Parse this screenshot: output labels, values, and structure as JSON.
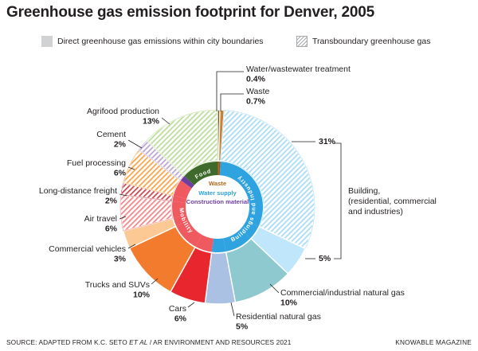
{
  "title": "Greenhouse gas emission footprint for Denver, 2005",
  "legend": {
    "direct": "Direct greenhouse gas emissions within city boundaries",
    "transboundary": "Transboundary greenhouse gas"
  },
  "chart_data": {
    "type": "pie",
    "title": "Greenhouse gas emission footprint for Denver, 2005",
    "unit": "%",
    "slices": [
      {
        "label": "Water/wastewater treatment",
        "value": 0.4,
        "pct_label": "0.4%",
        "group": "Waste",
        "kind": "direct",
        "color": "#8a4f0e"
      },
      {
        "label": "Waste",
        "value": 0.7,
        "pct_label": "0.7%",
        "group": "Waste",
        "kind": "direct",
        "color": "#c38335"
      },
      {
        "label": "Building, electricity (residential, commercial and industries)",
        "value": 31,
        "pct_label": "31%",
        "group": "Buildings and Industry",
        "kind": "transboundary",
        "color": "#a9dcf6"
      },
      {
        "label": "Building, electricity (residential, commercial and industries)",
        "value": 5,
        "pct_label": "5%",
        "group": "Buildings and Industry",
        "kind": "direct",
        "color": "#bfe6fb"
      },
      {
        "label": "Commercial/industrial natural gas",
        "value": 10,
        "pct_label": "10%",
        "group": "Buildings and Industry",
        "kind": "direct",
        "color": "#8ec9d0"
      },
      {
        "label": "Residential natural gas",
        "value": 5,
        "pct_label": "5%",
        "group": "Buildings and Industry",
        "kind": "direct",
        "color": "#aac1e3"
      },
      {
        "label": "Cars",
        "value": 6,
        "pct_label": "6%",
        "group": "Mobility",
        "kind": "direct",
        "color": "#e8262d"
      },
      {
        "label": "Trucks and SUVs",
        "value": 10,
        "pct_label": "10%",
        "group": "Mobility",
        "kind": "direct",
        "color": "#f27b2e"
      },
      {
        "label": "Commercial vehicles",
        "value": 3,
        "pct_label": "3%",
        "group": "Mobility",
        "kind": "direct",
        "color": "#fcc893"
      },
      {
        "label": "Air travel",
        "value": 6,
        "pct_label": "6%",
        "group": "Mobility",
        "kind": "transboundary",
        "color": "#f2898a"
      },
      {
        "label": "Long-distance freight",
        "value": 2,
        "pct_label": "2%",
        "group": "Mobility",
        "kind": "transboundary",
        "color": "#c94a53"
      },
      {
        "label": "Fuel processing",
        "value": 6,
        "pct_label": "6%",
        "group": "Mobility",
        "kind": "transboundary",
        "color": "#f9a54c"
      },
      {
        "label": "Cement",
        "value": 2,
        "pct_label": "2%",
        "group": "Construction material",
        "kind": "transboundary",
        "color": "#bda6d2"
      },
      {
        "label": "Agrifood production",
        "value": 13,
        "pct_label": "13%",
        "group": "Food",
        "kind": "transboundary",
        "color": "#bddd9c"
      }
    ],
    "inner_ring": [
      {
        "label": "Food",
        "color": "#3e6b2b"
      },
      {
        "label": "Buildings and Industry",
        "color": "#2ea3e0"
      },
      {
        "label": "Mobility",
        "color": "#ee5a5f"
      },
      {
        "label": "Construction material",
        "color": "#6d3fa0"
      },
      {
        "label": "Waste",
        "color": "#9a5a1a"
      }
    ],
    "center_labels": [
      {
        "text": "Waste",
        "color": "#b0681a"
      },
      {
        "text": "Water supply",
        "color": "#2ea3e0"
      },
      {
        "text": "Construction material",
        "color": "#6d3fa0"
      }
    ]
  },
  "footer": {
    "source_prefix": "SOURCE: ADAPTED FROM K.C. SETO ",
    "source_italic": "ET AL",
    "source_suffix": " / AR ENVIRONMENT AND RESOURCES 2021",
    "brand": "KNOWABLE MAGAZINE"
  }
}
